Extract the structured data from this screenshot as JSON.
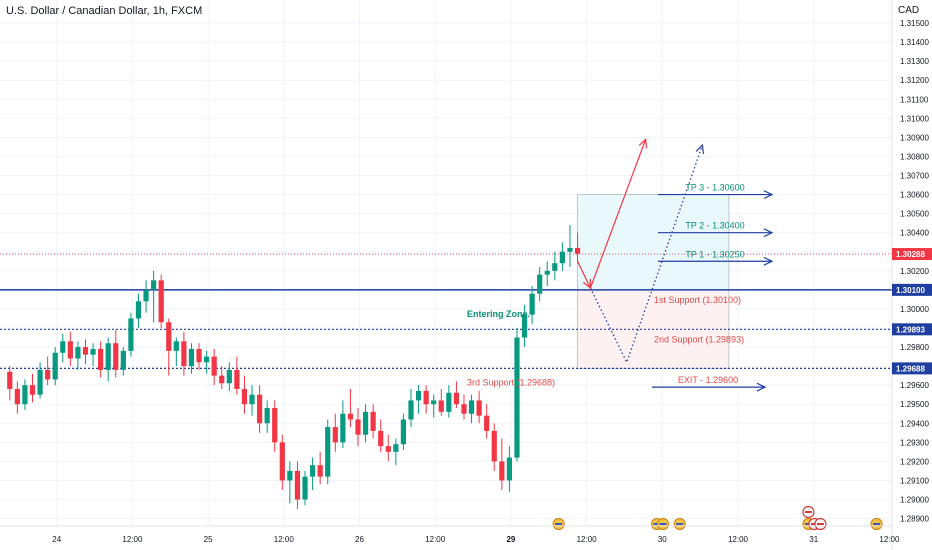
{
  "header": {
    "symbol_title": "U.S. Dollar / Canadian Dollar, 1h, FXCM",
    "currency": "CAD"
  },
  "colors": {
    "up": "#089981",
    "down": "#f23645",
    "blue": "#1e3fa0",
    "red_text": "#e04a4a",
    "green_text": "#0a8f74",
    "tp_zone": "#e8f8fb",
    "sl_zone": "#fdf1f1",
    "grid": "#f0f3fa",
    "axis_text": "#131722"
  },
  "chart_data": {
    "type": "candlestick",
    "title": "U.S. Dollar / Canadian Dollar, 1h, FXCM",
    "ylabel": "CAD",
    "ylim": [
      1.2884,
      1.316
    ],
    "y_ticks": [
      "1.31500",
      "1.31400",
      "1.31300",
      "1.31200",
      "1.31100",
      "1.31000",
      "1.30900",
      "1.30800",
      "1.30700",
      "1.30600",
      "1.30500",
      "1.30400",
      "1.30300",
      "1.30200",
      "1.30100",
      "1.30000",
      "1.29900",
      "1.29800",
      "1.29700",
      "1.29600",
      "1.29500",
      "1.29400",
      "1.29300",
      "1.29200",
      "1.29100",
      "1.29000",
      "1.28900"
    ],
    "x_ticks": [
      "24",
      "12:00",
      "25",
      "12:00",
      "26",
      "12:00",
      "29",
      "12:00",
      "30",
      "12:00",
      "31",
      "12:00"
    ],
    "candles": [
      [
        1.2967,
        1.297,
        1.2952,
        1.2958
      ],
      [
        1.2958,
        1.2962,
        1.2945,
        1.295
      ],
      [
        1.295,
        1.2963,
        1.2947,
        1.296
      ],
      [
        1.296,
        1.2966,
        1.2951,
        1.2955
      ],
      [
        1.2955,
        1.2972,
        1.2953,
        1.2968
      ],
      [
        1.2968,
        1.2975,
        1.296,
        1.2963
      ],
      [
        1.2963,
        1.298,
        1.296,
        1.2977
      ],
      [
        1.2977,
        1.2987,
        1.2972,
        1.2983
      ],
      [
        1.2983,
        1.2988,
        1.297,
        1.2974
      ],
      [
        1.2974,
        1.2983,
        1.2968,
        1.298
      ],
      [
        1.298,
        1.2984,
        1.2971,
        1.2976
      ],
      [
        1.2976,
        1.2982,
        1.297,
        1.2979
      ],
      [
        1.2979,
        1.2983,
        1.2964,
        1.2968
      ],
      [
        1.2968,
        1.2985,
        1.2962,
        1.2982
      ],
      [
        1.2982,
        1.2989,
        1.2964,
        1.2968
      ],
      [
        1.2968,
        1.298,
        1.2965,
        1.2978
      ],
      [
        1.2978,
        1.2998,
        1.2975,
        1.2995
      ],
      [
        1.2995,
        1.3008,
        1.299,
        1.3004
      ],
      [
        1.3004,
        1.3015,
        1.2998,
        1.301
      ],
      [
        1.301,
        1.302,
        1.2993,
        1.3015
      ],
      [
        1.3015,
        1.3018,
        1.299,
        1.2993
      ],
      [
        1.2993,
        1.2995,
        1.2965,
        1.2978
      ],
      [
        1.2978,
        1.2985,
        1.297,
        1.2983
      ],
      [
        1.2983,
        1.2988,
        1.2965,
        1.297
      ],
      [
        1.297,
        1.2982,
        1.2966,
        1.2979
      ],
      [
        1.2979,
        1.2982,
        1.2968,
        1.2972
      ],
      [
        1.2972,
        1.2978,
        1.2966,
        1.2975
      ],
      [
        1.2975,
        1.2979,
        1.296,
        1.2965
      ],
      [
        1.2965,
        1.297,
        1.2958,
        1.2961
      ],
      [
        1.2961,
        1.2972,
        1.2957,
        1.2968
      ],
      [
        1.2968,
        1.2975,
        1.2955,
        1.2958
      ],
      [
        1.2958,
        1.2965,
        1.2945,
        1.295
      ],
      [
        1.295,
        1.296,
        1.2944,
        1.2955
      ],
      [
        1.2955,
        1.296,
        1.2935,
        1.294
      ],
      [
        1.294,
        1.2952,
        1.2935,
        1.2948
      ],
      [
        1.2948,
        1.2952,
        1.2925,
        1.293
      ],
      [
        1.293,
        1.2934,
        1.2905,
        1.291
      ],
      [
        1.291,
        1.292,
        1.2898,
        1.2915
      ],
      [
        1.2915,
        1.292,
        1.2895,
        1.29
      ],
      [
        1.29,
        1.2915,
        1.2897,
        1.2912
      ],
      [
        1.2912,
        1.2922,
        1.2905,
        1.2918
      ],
      [
        1.2918,
        1.2925,
        1.2908,
        1.2912
      ],
      [
        1.2912,
        1.2942,
        1.2908,
        1.2938
      ],
      [
        1.2938,
        1.2945,
        1.2925,
        1.293
      ],
      [
        1.293,
        1.2952,
        1.2927,
        1.2945
      ],
      [
        1.2945,
        1.2958,
        1.2938,
        1.2942
      ],
      [
        1.2942,
        1.2948,
        1.2928,
        1.2934
      ],
      [
        1.2934,
        1.295,
        1.293,
        1.2946
      ],
      [
        1.2946,
        1.295,
        1.2932,
        1.2936
      ],
      [
        1.2936,
        1.2942,
        1.2925,
        1.2928
      ],
      [
        1.2928,
        1.2934,
        1.292,
        1.2925
      ],
      [
        1.2925,
        1.2932,
        1.2918,
        1.2929
      ],
      [
        1.2929,
        1.2945,
        1.2926,
        1.2942
      ],
      [
        1.2942,
        1.2958,
        1.2938,
        1.2952
      ],
      [
        1.2952,
        1.296,
        1.2945,
        1.2957
      ],
      [
        1.2957,
        1.296,
        1.2945,
        1.295
      ],
      [
        1.295,
        1.2955,
        1.2943,
        1.2952
      ],
      [
        1.2952,
        1.2958,
        1.2944,
        1.2946
      ],
      [
        1.2946,
        1.296,
        1.2943,
        1.2956
      ],
      [
        1.2956,
        1.2962,
        1.2948,
        1.295
      ],
      [
        1.295,
        1.2955,
        1.2942,
        1.2945
      ],
      [
        1.2945,
        1.2955,
        1.294,
        1.2952
      ],
      [
        1.2952,
        1.2957,
        1.294,
        1.2944
      ],
      [
        1.2944,
        1.295,
        1.2932,
        1.2936
      ],
      [
        1.2936,
        1.294,
        1.2915,
        1.292
      ],
      [
        1.292,
        1.2932,
        1.2905,
        1.291
      ],
      [
        1.291,
        1.2928,
        1.2904,
        1.2922
      ],
      [
        1.2922,
        1.299,
        1.292,
        1.2985
      ],
      [
        1.2985,
        1.3002,
        1.298,
        1.2997
      ],
      [
        1.2997,
        1.3012,
        1.2992,
        1.3008
      ],
      [
        1.3008,
        1.3022,
        1.3004,
        1.3018
      ],
      [
        1.3018,
        1.3025,
        1.3012,
        1.302
      ],
      [
        1.302,
        1.303,
        1.3015,
        1.3024
      ],
      [
        1.3024,
        1.3035,
        1.302,
        1.303
      ],
      [
        1.303,
        1.3044,
        1.3022,
        1.3032
      ],
      [
        1.3032,
        1.304,
        1.3024,
        1.3029
      ]
    ],
    "levels": [
      {
        "value": 1.301,
        "style": "solid",
        "label": "1.30100"
      },
      {
        "value": 1.29893,
        "style": "dotted",
        "label": "1.29893"
      },
      {
        "value": 1.29688,
        "style": "dotted",
        "label": "1.29688"
      }
    ],
    "last_price": {
      "value": 1.30288,
      "label": "1.30288"
    },
    "position": {
      "entry": 1.301,
      "target": 1.306,
      "stop": 1.29688,
      "start_index": 75.5,
      "end_index": 95.5
    },
    "paths": {
      "solid_arrow": [
        [
          75.5,
          1.3025
        ],
        [
          77.2,
          1.3011
        ],
        [
          84.5,
          1.3089
        ]
      ],
      "dotted_arrow": [
        [
          77.2,
          1.3011
        ],
        [
          82.0,
          1.2972
        ],
        [
          92.0,
          1.3086
        ]
      ]
    },
    "annotations": {
      "tp3": {
        "text": "TP 3 - 1.30600",
        "value": 1.306
      },
      "tp2": {
        "text": "TP 2 - 1.30400",
        "value": 1.304
      },
      "tp1": {
        "text": "TP 1 - 1.30250",
        "value": 1.3025
      },
      "exit": {
        "text": "EXIT - 1.29600",
        "value": 1.296
      },
      "support1": "1st Support (1.30100)",
      "support2": "2nd Support (1.29893)",
      "support3": "3rd Support (1.29688)",
      "entry_zone": "Entering Zone."
    },
    "events": [
      {
        "index": 73,
        "flags": [
          "us"
        ]
      },
      {
        "index": 86,
        "flags": [
          "us",
          "us"
        ]
      },
      {
        "index": 89,
        "flags": [
          "us"
        ]
      },
      {
        "index": 106,
        "flags": [
          "ca"
        ]
      },
      {
        "index": 106,
        "flags": [
          "us",
          "ca",
          "ca"
        ]
      },
      {
        "index": 115,
        "flags": [
          "us"
        ]
      },
      {
        "index": 129,
        "flags": [
          "us"
        ]
      },
      {
        "index": 129,
        "flags": [
          "us",
          "us",
          "ca"
        ]
      }
    ]
  }
}
